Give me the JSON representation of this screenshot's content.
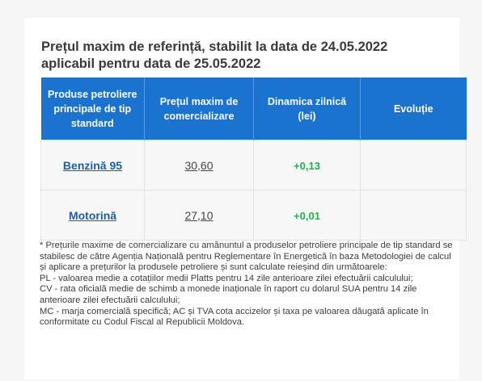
{
  "header": {
    "title_line1": "Prețul maxim de referință, stabilit la data de 24.05.2022",
    "title_line2": "aplicabil pentru data de 25.05.2022"
  },
  "table": {
    "columns": [
      "Produse petroliere principale de tip standard",
      "Prețul maxim de comercializare",
      "Dinamica zilnică (lei)",
      "Evoluție"
    ],
    "rows": [
      {
        "product": "Benzină 95",
        "price": "30,60",
        "delta": "+0,13",
        "evolution": ""
      },
      {
        "product": "Motorină",
        "price": "27,10",
        "delta": "+0,01",
        "evolution": ""
      }
    ]
  },
  "notes": {
    "line1": "* Prețurile maxime de comercializare cu amănuntul a produselor petroliere principale de tip standard se stabilesc de către Agenția Națională pentru Reglementare în Energetică în baza Metodologiei de calcul și aplicare a prețurilor la produsele petroliere și sunt calculate reieșind din următoarele:",
    "line2": "PL - valoarea medie a cotațiilor medii Platts pentru 14 zile anterioare zilei efectuării calculului;",
    "line3": "CV - rata oficială medie de schimb a monede inaționale în raport cu dolarul SUA pentru 14 zile anterioare zilei efectuării calculului;",
    "line4": "MC - marja comercială specifică; AC și TVA cota accizelor și taxa pe valoarea dăugată aplicate în conformitate cu Codul Fiscal al Republicii Moldova."
  },
  "colors": {
    "header_bg": "#1a73cf",
    "link": "#1c5fa8",
    "positive": "#22b24c"
  }
}
